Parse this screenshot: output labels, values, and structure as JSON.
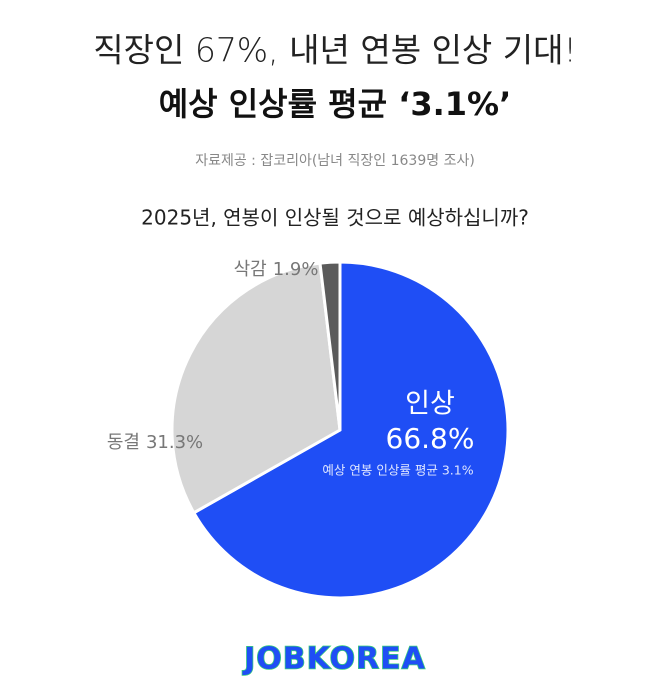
{
  "chart_data": {
    "type": "pie",
    "title": "직장인 67%, 내년 연봉 인상 기대!",
    "subtitle": "예상 인상률 평균 ‘3.1%’",
    "source": "자료제공 : 잡코리아(남녀 직장인 1639명 조사)",
    "question": "2025년, 연봉이 인상될 것으로 예상하십니까?",
    "categories": [
      "인상",
      "동결",
      "삭감"
    ],
    "values": [
      66.8,
      31.3,
      1.9
    ],
    "value_labels": [
      "66.8%",
      "31.3%",
      "1.9%"
    ],
    "colors": [
      "#1f4ef5",
      "#d6d6d6",
      "#5b5b5b"
    ],
    "annotation": "예상 연봉 인상률 평균 3.1%"
  },
  "logo": "JOBKOREA"
}
